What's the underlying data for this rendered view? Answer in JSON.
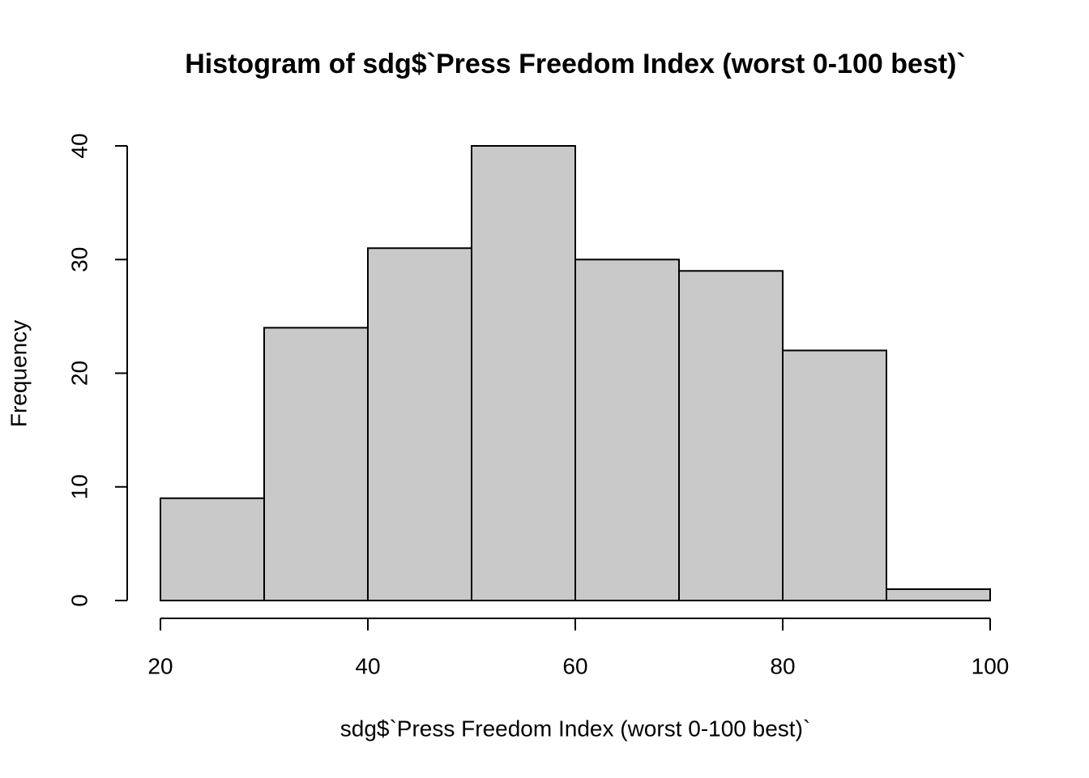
{
  "chart_data": {
    "type": "histogram",
    "title": "Histogram of sdg$`Press Freedom Index (worst 0-100 best)`",
    "x_label": "sdg$`Press Freedom Index (worst 0-100 best)`",
    "y_label": "Frequency",
    "bins": [
      20,
      30,
      40,
      50,
      60,
      70,
      80,
      90,
      100
    ],
    "values": [
      9,
      24,
      31,
      40,
      30,
      29,
      22,
      1
    ],
    "color": "#c9c9c9",
    "xlim": [
      20,
      100
    ],
    "xticks": [
      20,
      40,
      60,
      80,
      100
    ],
    "ylim": [
      0,
      40
    ],
    "yticks": [
      0,
      10,
      20,
      30,
      40
    ]
  }
}
